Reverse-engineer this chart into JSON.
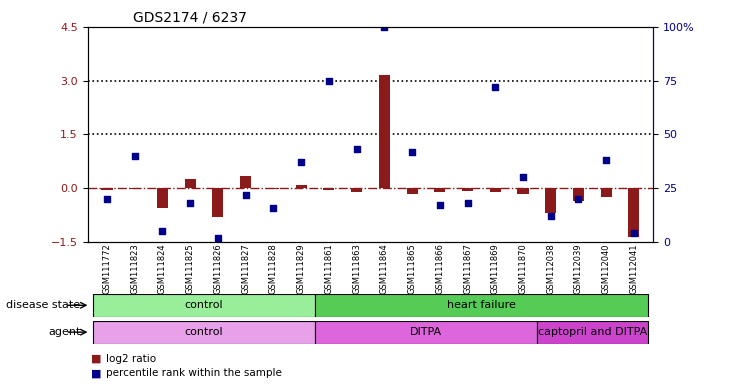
{
  "title": "GDS2174 / 6237",
  "samples": [
    "GSM111772",
    "GSM111823",
    "GSM111824",
    "GSM111825",
    "GSM111826",
    "GSM111827",
    "GSM111828",
    "GSM111829",
    "GSM111861",
    "GSM111863",
    "GSM111864",
    "GSM111865",
    "GSM111866",
    "GSM111867",
    "GSM111869",
    "GSM111870",
    "GSM112038",
    "GSM112039",
    "GSM112040",
    "GSM112041"
  ],
  "log2_ratio": [
    -0.05,
    -0.02,
    -0.55,
    0.25,
    -0.8,
    0.35,
    -0.02,
    0.08,
    -0.05,
    -0.12,
    3.15,
    -0.15,
    -0.12,
    -0.08,
    -0.12,
    -0.15,
    -0.7,
    -0.35,
    -0.25,
    -1.35
  ],
  "percentile_pct": [
    20,
    40,
    5,
    18,
    2,
    22,
    16,
    37,
    75,
    43,
    100,
    42,
    17,
    18,
    72,
    30,
    12,
    20,
    38,
    4
  ],
  "ylim_left": [
    -1.5,
    4.5
  ],
  "ylim_right": [
    0,
    100
  ],
  "dotted_lines_pct": [
    75,
    50
  ],
  "dashed_pct": 25,
  "disease_state_groups": [
    {
      "label": "control",
      "start": 0,
      "end": 7,
      "color": "#99EE99"
    },
    {
      "label": "heart failure",
      "start": 8,
      "end": 19,
      "color": "#55CC55"
    }
  ],
  "agent_groups": [
    {
      "label": "control",
      "start": 0,
      "end": 7,
      "color": "#E8A0E8"
    },
    {
      "label": "DITPA",
      "start": 8,
      "end": 15,
      "color": "#DD66DD"
    },
    {
      "label": "captopril and DITPA",
      "start": 16,
      "end": 19,
      "color": "#CC44CC"
    }
  ],
  "bar_color": "#8B1A1A",
  "dot_color": "#00008B",
  "legend_items": [
    "log2 ratio",
    "percentile rank within the sample"
  ],
  "legend_colors": [
    "#8B1A1A",
    "#00008B"
  ]
}
